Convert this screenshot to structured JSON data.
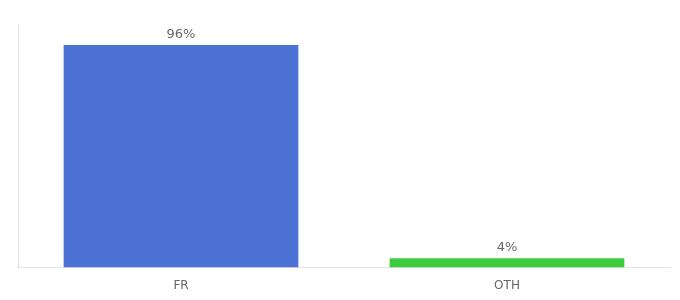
{
  "chart_data": {
    "type": "bar",
    "categories": [
      "FR",
      "OTH"
    ],
    "values": [
      96,
      4
    ],
    "value_labels": [
      "96%",
      "4%"
    ],
    "colors": [
      "#4b72d4",
      "#3dcc3d"
    ],
    "ylim": [
      0,
      105
    ],
    "grid": false,
    "data_labels": true,
    "tick_labels": "x"
  }
}
